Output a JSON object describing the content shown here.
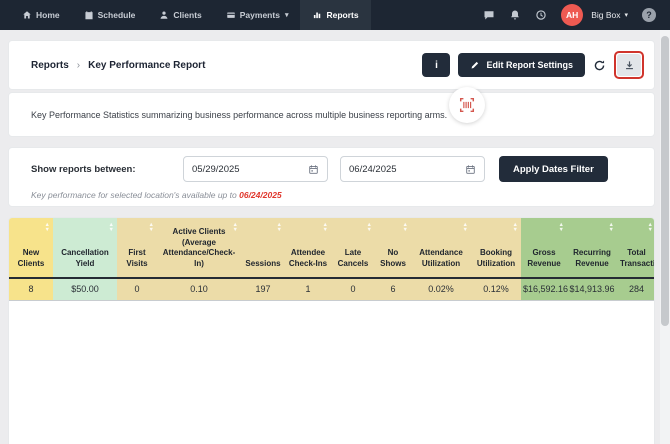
{
  "nav": {
    "items": [
      {
        "label": "Home"
      },
      {
        "label": "Schedule"
      },
      {
        "label": "Clients"
      },
      {
        "label": "Payments"
      },
      {
        "label": "Reports"
      }
    ],
    "active": "Reports",
    "account": {
      "initials": "AH",
      "name": "Big Box"
    },
    "help_label": "?"
  },
  "icons": {
    "caret": "▾",
    "sort_asc": "▲",
    "sort_desc": "▼"
  },
  "breadcrumb": {
    "section": "Reports",
    "separator": "›",
    "page": "Key Performance Report"
  },
  "toolbar": {
    "info_label": "i",
    "edit_label": "Edit Report Settings"
  },
  "description": "Key Performance Statistics summarizing business performance across multiple business reporting arms.",
  "filters": {
    "label": "Show reports between:",
    "start_date": "05/29/2025",
    "end_date": "06/24/2025",
    "apply_label": "Apply Dates Filter",
    "note_prefix": "Key performance for selected location's available up to ",
    "note_date": "06/24/2025"
  },
  "table": {
    "columns": [
      {
        "label": "New Clients",
        "value": "8",
        "tone": "yellow"
      },
      {
        "label": "Cancellation Yield",
        "value": "$50.00",
        "tone": "mint"
      },
      {
        "label": "First Visits",
        "value": "0",
        "tone": "tan"
      },
      {
        "label": "Active Clients (Average Attendance/Check-In)",
        "value": "0.10",
        "tone": "tan"
      },
      {
        "label": "Sessions",
        "value": "197",
        "tone": "tan"
      },
      {
        "label": "Attendee Check-Ins",
        "value": "1",
        "tone": "tan"
      },
      {
        "label": "Late Cancels",
        "value": "0",
        "tone": "tan"
      },
      {
        "label": "No Shows",
        "value": "6",
        "tone": "tan"
      },
      {
        "label": "Attendance Utilization",
        "value": "0.02%",
        "tone": "tan"
      },
      {
        "label": "Booking Utilization",
        "value": "0.12%",
        "tone": "tan"
      },
      {
        "label": "Gross Revenue",
        "value": "$16,592.16",
        "tone": "green"
      },
      {
        "label": "Recurring Revenue",
        "value": "$14,913.96",
        "tone": "green"
      },
      {
        "label": "Total Transactions",
        "value": "284",
        "tone": "green"
      }
    ]
  },
  "colors": {
    "nav_bg": "#1d2633",
    "nav_active_bg": "#2a3440",
    "button_dark": "#222c3a",
    "avatar_red": "#ee5a52",
    "barcode_coral": "#d4574e",
    "note_red": "#e0362c",
    "highlight_red": "#d0342c",
    "col_yellow": "#f7e38b",
    "col_mint": "#cdebd3",
    "col_tan": "#ecdca8",
    "col_green": "#a7cc8f"
  }
}
